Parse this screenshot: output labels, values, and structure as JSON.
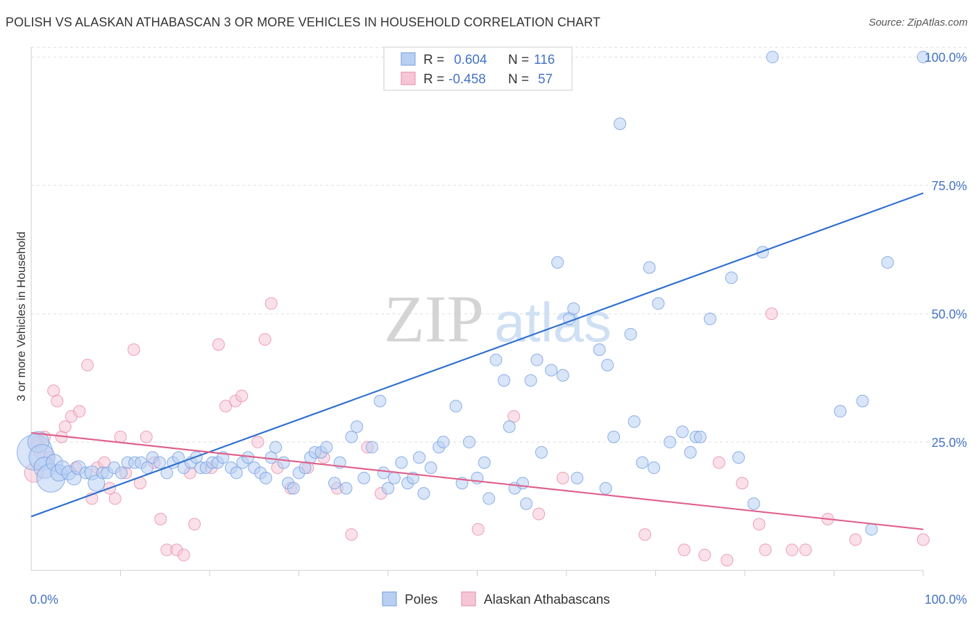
{
  "title": "POLISH VS ALASKAN ATHABASCAN 3 OR MORE VEHICLES IN HOUSEHOLD CORRELATION CHART",
  "source": "Source: ZipAtlas.com",
  "watermark": {
    "zip": "ZIP",
    "atlas": "atlas"
  },
  "colors": {
    "poles": "#6f9ee0",
    "poles_fill": "#b9cff2",
    "poles_line": "#2f6fcf",
    "alaskan": "#e889a7",
    "alaskan_fill": "#f6c6d6",
    "alaskan_line": "#e0608a",
    "grid": "#dddddd",
    "axis_text": "#4472c4"
  },
  "legend": {
    "r_label": "R =",
    "n_label": "N =",
    "poles_r": "0.604",
    "poles_n": "116",
    "alaskan_r": "-0.458",
    "alaskan_n": "57"
  },
  "chart_data": {
    "type": "scatter",
    "title": "POLISH VS ALASKAN ATHABASCAN 3 OR MORE VEHICLES IN HOUSEHOLD CORRELATION CHART",
    "xlabel": "",
    "ylabel": "3 or more Vehicles in Household",
    "xlim": [
      0,
      100
    ],
    "ylim": [
      0,
      103
    ],
    "x_tick_labels": [
      "0.0%",
      "100.0%"
    ],
    "y_ticks": [
      25,
      50,
      75,
      100
    ],
    "y_tick_labels": [
      "25.0%",
      "50.0%",
      "75.0%",
      "100.0%"
    ],
    "grid": true,
    "legend_position": "top-center",
    "series": [
      {
        "name": "Poles",
        "trend": {
          "x": [
            0,
            100
          ],
          "y": [
            10.5,
            73.5
          ]
        },
        "points": [
          [
            0.4,
            23,
            30
          ],
          [
            0.8,
            25,
            18
          ],
          [
            1.2,
            22,
            22
          ],
          [
            1.5,
            20,
            18
          ],
          [
            2.2,
            18,
            24
          ],
          [
            2.6,
            21,
            14
          ],
          [
            3.1,
            19,
            14
          ],
          [
            3.5,
            20,
            12
          ],
          [
            4.2,
            19,
            12
          ],
          [
            4.8,
            18,
            12
          ],
          [
            5.3,
            20,
            12
          ],
          [
            6.1,
            19,
            10
          ],
          [
            6.8,
            19,
            12
          ],
          [
            7.3,
            17,
            14
          ],
          [
            8.0,
            19,
            10
          ],
          [
            8.5,
            19,
            10
          ],
          [
            9.3,
            20,
            10
          ],
          [
            10.1,
            19,
            10
          ],
          [
            10.8,
            21,
            10
          ],
          [
            11.6,
            21,
            10
          ],
          [
            12.3,
            21,
            10
          ],
          [
            13.0,
            20,
            10
          ],
          [
            13.6,
            22,
            10
          ],
          [
            14.4,
            21,
            10
          ],
          [
            15.2,
            19,
            10
          ],
          [
            15.9,
            21,
            10
          ],
          [
            16.5,
            22,
            10
          ],
          [
            17.1,
            20,
            10
          ],
          [
            17.9,
            21,
            10
          ],
          [
            18.5,
            22,
            10
          ],
          [
            19.0,
            20,
            10
          ],
          [
            19.6,
            20,
            10
          ],
          [
            20.3,
            21,
            10
          ],
          [
            20.9,
            21,
            10
          ],
          [
            21.5,
            22,
            10
          ],
          [
            22.4,
            20,
            10
          ],
          [
            23.0,
            19,
            10
          ],
          [
            23.7,
            21,
            10
          ],
          [
            24.3,
            22,
            10
          ],
          [
            25.0,
            20,
            10
          ],
          [
            25.7,
            19,
            10
          ],
          [
            26.3,
            18,
            10
          ],
          [
            26.9,
            22,
            10
          ],
          [
            27.4,
            24,
            10
          ],
          [
            28.3,
            21,
            10
          ],
          [
            28.8,
            17,
            10
          ],
          [
            29.4,
            16,
            10
          ],
          [
            30.0,
            19,
            10
          ],
          [
            30.7,
            20,
            10
          ],
          [
            31.3,
            22,
            10
          ],
          [
            31.8,
            23,
            10
          ],
          [
            32.5,
            23,
            10
          ],
          [
            33.1,
            24,
            10
          ],
          [
            34.0,
            17,
            10
          ],
          [
            34.6,
            21,
            10
          ],
          [
            35.3,
            16,
            10
          ],
          [
            35.9,
            26,
            10
          ],
          [
            36.5,
            28,
            10
          ],
          [
            37.3,
            18,
            10
          ],
          [
            38.2,
            24,
            10
          ],
          [
            39.1,
            33,
            10
          ],
          [
            39.5,
            19,
            10
          ],
          [
            40.0,
            16,
            10
          ],
          [
            40.7,
            18,
            10
          ],
          [
            41.5,
            21,
            10
          ],
          [
            42.2,
            17,
            10
          ],
          [
            42.8,
            18,
            10
          ],
          [
            43.5,
            22,
            10
          ],
          [
            44.0,
            15,
            10
          ],
          [
            44.8,
            20,
            10
          ],
          [
            45.7,
            24,
            10
          ],
          [
            46.2,
            25,
            10
          ],
          [
            47.6,
            32,
            10
          ],
          [
            48.3,
            17,
            10
          ],
          [
            49.1,
            25,
            10
          ],
          [
            50.0,
            18,
            10
          ],
          [
            50.8,
            21,
            10
          ],
          [
            51.3,
            14,
            10
          ],
          [
            52.1,
            41,
            10
          ],
          [
            53.0,
            37,
            10
          ],
          [
            53.6,
            28,
            10
          ],
          [
            54.2,
            16,
            10
          ],
          [
            55.1,
            17,
            10
          ],
          [
            55.5,
            13,
            10
          ],
          [
            56.0,
            37,
            10
          ],
          [
            56.7,
            41,
            10
          ],
          [
            57.2,
            23,
            10
          ],
          [
            58.3,
            39,
            10
          ],
          [
            59.0,
            60,
            10
          ],
          [
            59.6,
            38,
            10
          ],
          [
            60.3,
            49,
            10
          ],
          [
            60.8,
            51,
            10
          ],
          [
            61.2,
            18,
            10
          ],
          [
            63.7,
            43,
            10
          ],
          [
            64.6,
            40,
            10
          ],
          [
            64.4,
            16,
            10
          ],
          [
            65.3,
            26,
            10
          ],
          [
            66.0,
            87,
            10
          ],
          [
            67.2,
            46,
            10
          ],
          [
            67.6,
            29,
            10
          ],
          [
            68.5,
            21,
            10
          ],
          [
            69.3,
            59,
            10
          ],
          [
            69.8,
            20,
            10
          ],
          [
            70.3,
            52,
            10
          ],
          [
            71.6,
            25,
            10
          ],
          [
            73.0,
            27,
            10
          ],
          [
            73.9,
            23,
            10
          ],
          [
            74.5,
            26,
            10
          ],
          [
            75.0,
            26,
            10
          ],
          [
            76.1,
            49,
            10
          ],
          [
            78.5,
            57,
            10
          ],
          [
            79.3,
            22,
            10
          ],
          [
            81.0,
            13,
            10
          ],
          [
            82.0,
            62,
            10
          ],
          [
            83.1,
            100,
            10
          ],
          [
            90.7,
            31,
            10
          ],
          [
            93.2,
            33,
            10
          ],
          [
            94.2,
            8,
            10
          ],
          [
            96.0,
            60,
            10
          ],
          [
            100.0,
            100,
            10
          ]
        ]
      },
      {
        "name": "Alaskan Athabascans",
        "trend": {
          "x": [
            0,
            100
          ],
          "y": [
            26.8,
            8.0
          ]
        },
        "points": [
          [
            0.3,
            19,
            16
          ],
          [
            0.6,
            25,
            10
          ],
          [
            1.0,
            23,
            10
          ],
          [
            1.5,
            26,
            10
          ],
          [
            2.0,
            22,
            10
          ],
          [
            2.5,
            35,
            10
          ],
          [
            2.9,
            33,
            10
          ],
          [
            3.4,
            26,
            10
          ],
          [
            3.8,
            28,
            10
          ],
          [
            4.5,
            30,
            10
          ],
          [
            5.0,
            20,
            10
          ],
          [
            5.4,
            31,
            10
          ],
          [
            6.3,
            40,
            10
          ],
          [
            6.8,
            14,
            10
          ],
          [
            7.4,
            20,
            10
          ],
          [
            8.2,
            21,
            10
          ],
          [
            8.8,
            16,
            10
          ],
          [
            9.4,
            14,
            10
          ],
          [
            10.0,
            26,
            10
          ],
          [
            10.6,
            19,
            10
          ],
          [
            11.5,
            43,
            10
          ],
          [
            12.2,
            17,
            10
          ],
          [
            12.9,
            26,
            10
          ],
          [
            13.8,
            21,
            10
          ],
          [
            14.5,
            10,
            10
          ],
          [
            15.2,
            4,
            10
          ],
          [
            16.3,
            4,
            10
          ],
          [
            17.1,
            3,
            10
          ],
          [
            17.8,
            19,
            10
          ],
          [
            18.3,
            9,
            10
          ],
          [
            20.2,
            20,
            10
          ],
          [
            21.0,
            44,
            10
          ],
          [
            21.8,
            32,
            10
          ],
          [
            22.9,
            33,
            10
          ],
          [
            23.6,
            34,
            10
          ],
          [
            25.4,
            25,
            10
          ],
          [
            26.2,
            45,
            10
          ],
          [
            26.9,
            52,
            10
          ],
          [
            27.6,
            20,
            10
          ],
          [
            29.1,
            16,
            10
          ],
          [
            31.0,
            20,
            10
          ],
          [
            32.8,
            22,
            10
          ],
          [
            34.3,
            16,
            10
          ],
          [
            35.9,
            7,
            10
          ],
          [
            37.7,
            24,
            10
          ],
          [
            39.2,
            15,
            10
          ],
          [
            50.1,
            8,
            10
          ],
          [
            54.1,
            30,
            10
          ],
          [
            56.9,
            11,
            10
          ],
          [
            59.6,
            18,
            10
          ],
          [
            68.8,
            7,
            10
          ],
          [
            73.2,
            4,
            10
          ],
          [
            75.5,
            3,
            10
          ],
          [
            77.1,
            21,
            10
          ],
          [
            78.0,
            2,
            10
          ],
          [
            79.7,
            17,
            10
          ],
          [
            81.6,
            9,
            10
          ],
          [
            82.3,
            4,
            10
          ],
          [
            83.0,
            50,
            10
          ],
          [
            85.3,
            4,
            10
          ],
          [
            86.8,
            4,
            10
          ],
          [
            89.3,
            10,
            10
          ],
          [
            92.4,
            6,
            10
          ],
          [
            100.0,
            6,
            10
          ]
        ]
      }
    ]
  },
  "bottom_legend": {
    "poles": "Poles",
    "alaskan": "Alaskan Athabascans"
  }
}
